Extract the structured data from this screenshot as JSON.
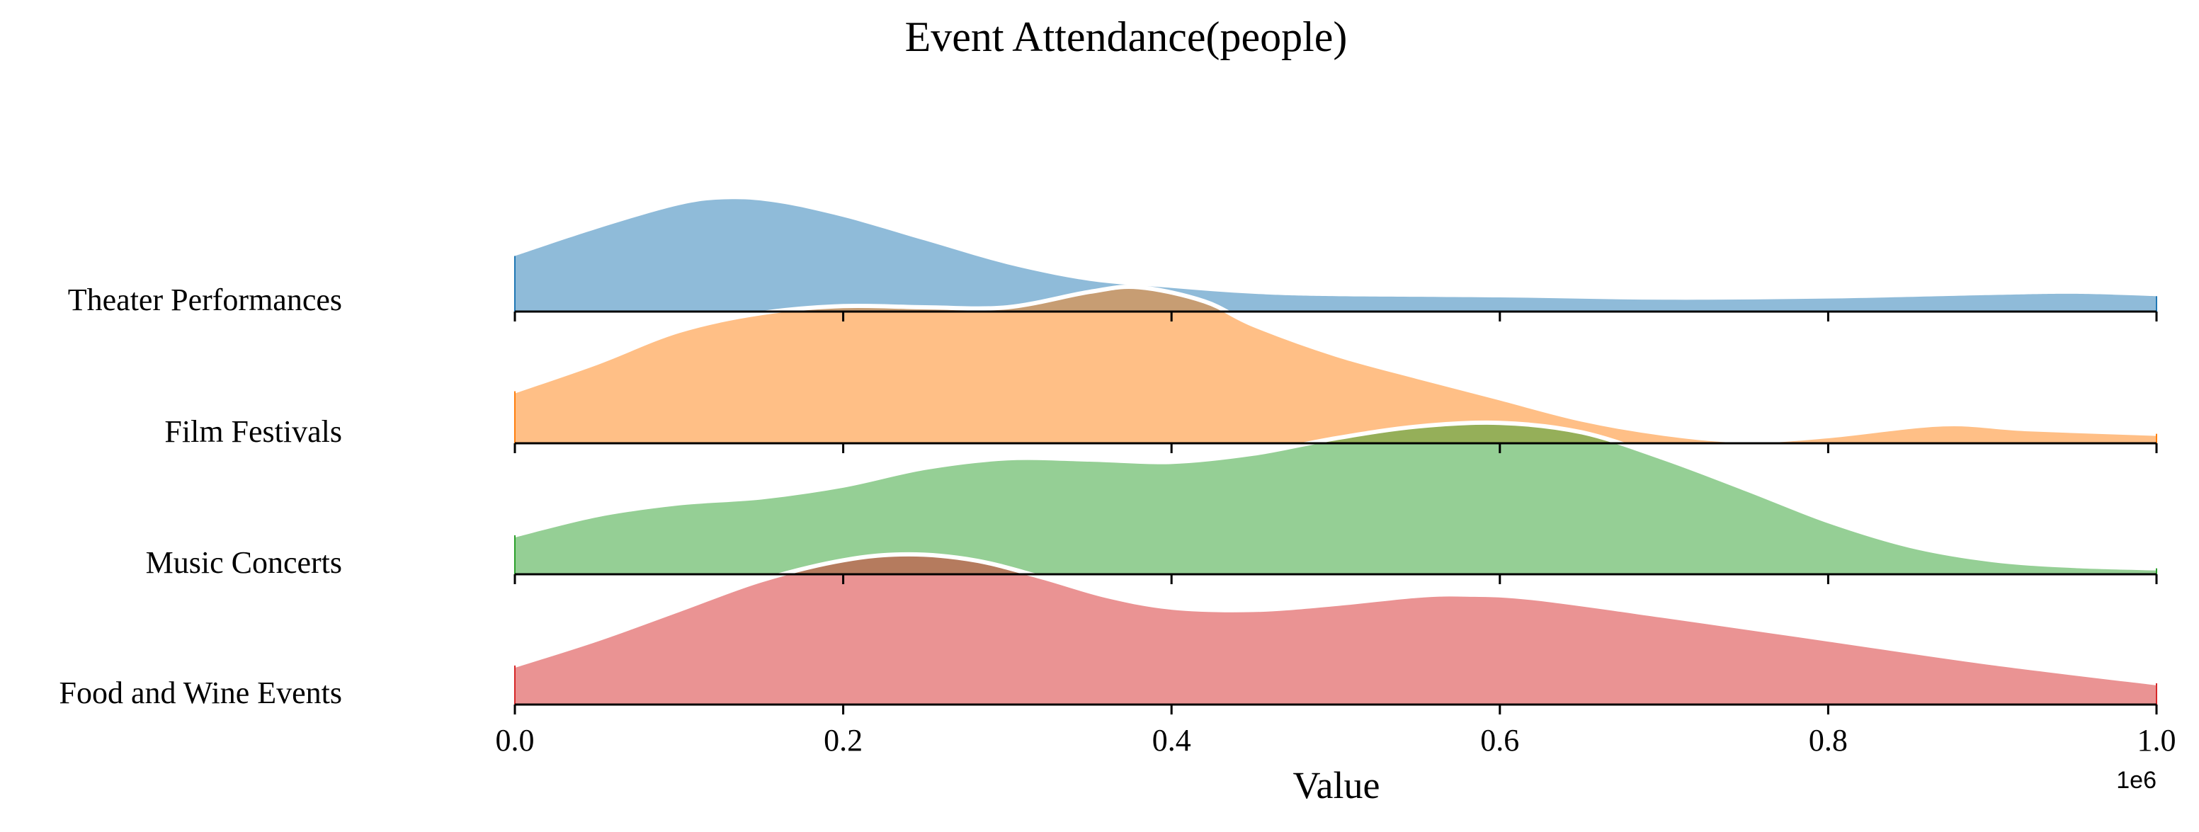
{
  "chart_data": {
    "type": "area",
    "subtype": "ridgeline",
    "title": "Event Attendance(people)",
    "xlabel": "Value",
    "ylabel": "",
    "x_offset_label": "1e6",
    "xlim": [
      0,
      1
    ],
    "x_ticks": [
      "0.0",
      "0.2",
      "0.4",
      "0.6",
      "0.8",
      "1.0"
    ],
    "grid": false,
    "legend": "none",
    "categories": [
      "Theater Performances",
      "Film Festivals",
      "Music Concerts",
      "Food and Wine Events"
    ],
    "series": [
      {
        "name": "Theater Performances",
        "color": "#1f77b4",
        "x": [
          0.0,
          0.05,
          0.1,
          0.13,
          0.16,
          0.2,
          0.25,
          0.3,
          0.35,
          0.4,
          0.45,
          0.5,
          0.6,
          0.7,
          0.8,
          0.9,
          0.95,
          1.0
        ],
        "density": [
          0.47,
          0.7,
          0.9,
          0.95,
          0.92,
          0.8,
          0.6,
          0.4,
          0.26,
          0.2,
          0.15,
          0.13,
          0.12,
          0.1,
          0.11,
          0.14,
          0.15,
          0.13
        ]
      },
      {
        "name": "Film Festivals",
        "color": "#ff7f0e",
        "x": [
          0.0,
          0.05,
          0.1,
          0.15,
          0.2,
          0.25,
          0.3,
          0.35,
          0.38,
          0.42,
          0.45,
          0.5,
          0.55,
          0.6,
          0.65,
          0.7,
          0.75,
          0.8,
          0.87,
          0.92,
          1.0
        ],
        "density": [
          0.44,
          0.68,
          0.95,
          1.1,
          1.16,
          1.15,
          1.15,
          1.28,
          1.32,
          1.2,
          1.0,
          0.75,
          0.56,
          0.38,
          0.2,
          0.08,
          0.02,
          0.06,
          0.16,
          0.12,
          0.08
        ]
      },
      {
        "name": "Music Concerts",
        "color": "#2ca02c",
        "x": [
          0.0,
          0.05,
          0.1,
          0.15,
          0.2,
          0.25,
          0.3,
          0.35,
          0.4,
          0.45,
          0.5,
          0.55,
          0.6,
          0.65,
          0.7,
          0.75,
          0.8,
          0.85,
          0.9,
          0.95,
          1.0
        ],
        "density": [
          0.33,
          0.5,
          0.6,
          0.65,
          0.75,
          0.9,
          0.98,
          0.97,
          0.95,
          1.02,
          1.15,
          1.25,
          1.28,
          1.2,
          0.98,
          0.72,
          0.45,
          0.24,
          0.12,
          0.07,
          0.05
        ]
      },
      {
        "name": "Food and Wine Events",
        "color": "#d62728",
        "x": [
          0.0,
          0.05,
          0.1,
          0.15,
          0.2,
          0.24,
          0.28,
          0.32,
          0.36,
          0.4,
          0.45,
          0.5,
          0.55,
          0.58,
          0.62,
          0.7,
          0.8,
          0.9,
          1.0
        ],
        "density": [
          0.33,
          0.55,
          0.8,
          1.05,
          1.22,
          1.27,
          1.22,
          1.08,
          0.92,
          0.82,
          0.8,
          0.85,
          0.92,
          0.93,
          0.9,
          0.75,
          0.55,
          0.35,
          0.18
        ]
      }
    ]
  }
}
